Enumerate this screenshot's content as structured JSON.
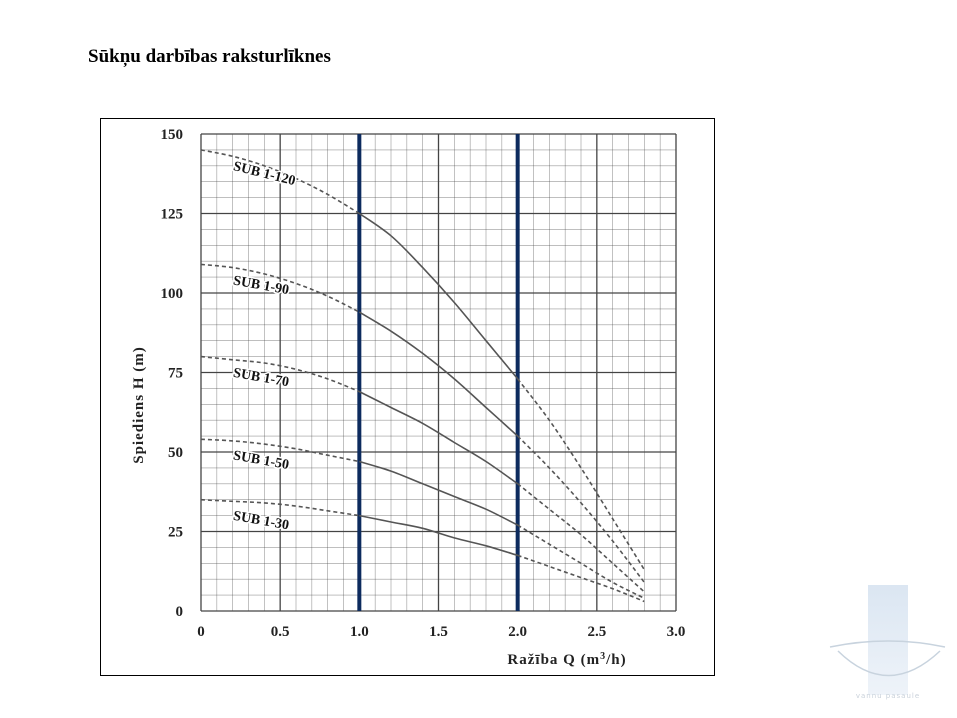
{
  "page": {
    "title": "Sūkņu darbības raksturlīknes"
  },
  "colors": {
    "grid": "#444444",
    "curve": "#555555",
    "highlight": "#0d2b5e",
    "axis_text": "#222222"
  },
  "watermark": {
    "icon": "vannu-logo-icon",
    "text": "vannu pasaule"
  },
  "chart_data": {
    "type": "line",
    "title": "",
    "xlabel_main": "Ražība  Q (m",
    "xlabel_sup": "3",
    "xlabel_tail": "/h)",
    "ylabel": "Spiediens H (m)",
    "xlim": [
      0,
      3.0
    ],
    "ylim": [
      0,
      150
    ],
    "x_ticks": [
      "0",
      "0.5",
      "1.0",
      "1.5",
      "2.0",
      "2.5",
      "3.0"
    ],
    "x_tick_values": [
      0,
      0.5,
      1.0,
      1.5,
      2.0,
      2.5,
      3.0
    ],
    "y_ticks": [
      "0",
      "25",
      "50",
      "75",
      "100",
      "125",
      "150"
    ],
    "y_tick_values": [
      0,
      25,
      50,
      75,
      100,
      125,
      150
    ],
    "minor_x_step": 0.1,
    "minor_y_step": 5,
    "grid": true,
    "operating_range": [
      1.0,
      2.0
    ],
    "series": [
      {
        "name": "SUB 1-120",
        "points": [
          [
            0,
            145
          ],
          [
            0.2,
            143
          ],
          [
            0.4,
            140
          ],
          [
            0.6,
            136
          ],
          [
            0.8,
            131
          ],
          [
            1.0,
            125
          ],
          [
            1.2,
            118
          ],
          [
            1.4,
            108
          ],
          [
            1.6,
            97
          ],
          [
            1.8,
            85
          ],
          [
            2.0,
            73
          ],
          [
            2.2,
            60
          ],
          [
            2.4,
            45
          ],
          [
            2.6,
            29
          ],
          [
            2.8,
            13
          ]
        ]
      },
      {
        "name": "SUB 1-90",
        "points": [
          [
            0,
            109
          ],
          [
            0.2,
            108
          ],
          [
            0.4,
            106
          ],
          [
            0.6,
            103
          ],
          [
            0.8,
            99
          ],
          [
            1.0,
            94
          ],
          [
            1.2,
            88
          ],
          [
            1.4,
            81
          ],
          [
            1.6,
            73
          ],
          [
            1.8,
            64
          ],
          [
            2.0,
            55
          ],
          [
            2.2,
            45
          ],
          [
            2.4,
            34
          ],
          [
            2.6,
            22
          ],
          [
            2.8,
            9
          ]
        ]
      },
      {
        "name": "SUB 1-70",
        "points": [
          [
            0,
            80
          ],
          [
            0.2,
            79
          ],
          [
            0.4,
            78
          ],
          [
            0.6,
            76
          ],
          [
            0.8,
            73
          ],
          [
            1.0,
            69
          ],
          [
            1.2,
            64
          ],
          [
            1.4,
            59
          ],
          [
            1.6,
            53
          ],
          [
            1.8,
            47
          ],
          [
            2.0,
            40
          ],
          [
            2.2,
            32
          ],
          [
            2.4,
            24
          ],
          [
            2.6,
            15
          ],
          [
            2.8,
            6
          ]
        ]
      },
      {
        "name": "SUB 1-50",
        "points": [
          [
            0,
            54
          ],
          [
            0.2,
            53.5
          ],
          [
            0.4,
            52.5
          ],
          [
            0.6,
            51
          ],
          [
            0.8,
            49
          ],
          [
            1.0,
            47
          ],
          [
            1.2,
            44
          ],
          [
            1.4,
            40
          ],
          [
            1.6,
            36
          ],
          [
            1.8,
            32
          ],
          [
            2.0,
            27
          ],
          [
            2.2,
            21
          ],
          [
            2.4,
            15
          ],
          [
            2.6,
            9
          ],
          [
            2.8,
            4
          ]
        ]
      },
      {
        "name": "SUB 1-30",
        "points": [
          [
            0,
            35
          ],
          [
            0.2,
            34.5
          ],
          [
            0.4,
            34
          ],
          [
            0.6,
            33
          ],
          [
            0.8,
            31.5
          ],
          [
            1.0,
            30
          ],
          [
            1.2,
            28
          ],
          [
            1.4,
            26
          ],
          [
            1.6,
            23
          ],
          [
            1.8,
            20.5
          ],
          [
            2.0,
            17.5
          ],
          [
            2.2,
            14
          ],
          [
            2.4,
            10.5
          ],
          [
            2.6,
            7
          ],
          [
            2.8,
            3
          ]
        ]
      }
    ]
  }
}
